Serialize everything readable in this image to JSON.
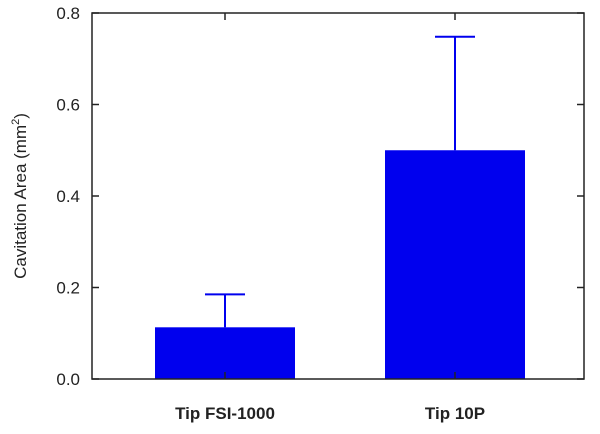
{
  "chart_data": {
    "type": "bar",
    "categories": [
      "Tip FSI-1000",
      "Tip 10P"
    ],
    "values": [
      0.113,
      0.5
    ],
    "error_upper": [
      0.185,
      0.748
    ],
    "title": "",
    "xlabel": "",
    "ylabel_main": "Cavitation Area (mm",
    "ylabel_sup": "2",
    "ylabel_close": ")",
    "ylim": [
      0.0,
      0.8
    ],
    "yticks": [
      "0.0",
      "0.2",
      "0.4",
      "0.6",
      "0.8"
    ],
    "grid": false,
    "legend": "none",
    "bar_color": "#0000ee",
    "axis_color": "#222222"
  }
}
